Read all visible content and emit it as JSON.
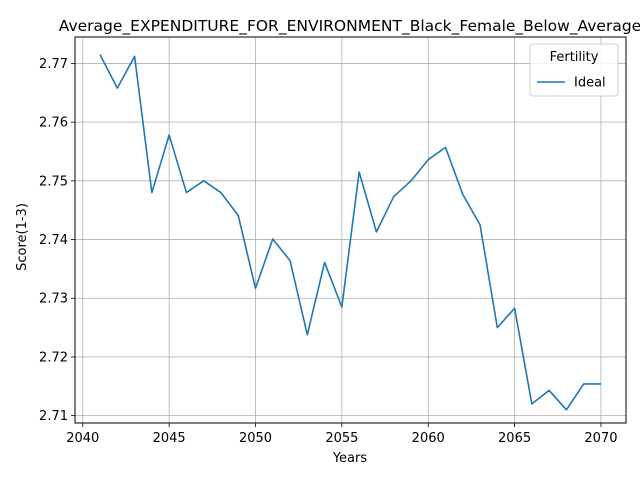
{
  "chart_data": {
    "type": "line",
    "title": "Average_EXPENDITURE_FOR_ENVIRONMENT_Black_Female_Below_Average",
    "xlabel": "Years",
    "ylabel": "Score(1-3)",
    "xlim": [
      2039.55,
      2071.45
    ],
    "ylim": [
      2.70875,
      2.7745
    ],
    "xticks": [
      2040,
      2045,
      2050,
      2055,
      2060,
      2065,
      2070
    ],
    "yticks": [
      2.71,
      2.72,
      2.73,
      2.74,
      2.75,
      2.76,
      2.77
    ],
    "grid": true,
    "legend": {
      "title": "Fertility",
      "position": "top-right"
    },
    "series": [
      {
        "name": "Ideal",
        "color": "#1f77b4",
        "x": [
          2041,
          2042,
          2043,
          2044,
          2045,
          2046,
          2047,
          2048,
          2049,
          2050,
          2051,
          2052,
          2053,
          2054,
          2055,
          2056,
          2057,
          2058,
          2059,
          2060,
          2061,
          2062,
          2063,
          2064,
          2065,
          2066,
          2067,
          2068,
          2069,
          2070
        ],
        "values": [
          2.7715,
          2.7658,
          2.7712,
          2.748,
          2.7578,
          2.748,
          2.75,
          2.748,
          2.7441,
          2.7317,
          2.7401,
          2.7364,
          2.7238,
          2.7361,
          2.7285,
          2.7515,
          2.7413,
          2.7473,
          2.75,
          2.7536,
          2.7557,
          2.7477,
          2.7425,
          2.725,
          2.7283,
          2.712,
          2.7143,
          2.711,
          2.7154,
          2.7154
        ]
      }
    ]
  }
}
